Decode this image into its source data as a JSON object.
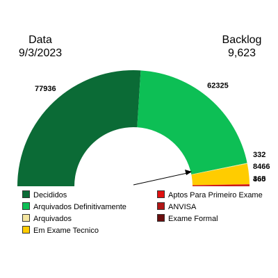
{
  "header": {
    "date_label": "Data",
    "date_value": "9/3/2023",
    "backlog_label": "Backlog",
    "backlog_value": "9,623"
  },
  "chart_data": {
    "type": "pie",
    "variant": "half-donut",
    "categories": [
      "Decididos",
      "Arquivados Definitivamente",
      "Arquivados",
      "Em Exame Tecnico",
      "Aptos Para Primeiro Exame",
      "ANVISA",
      "Exame Formal"
    ],
    "values": [
      77936,
      62325,
      332,
      8466,
      465,
      360,
      0
    ],
    "value_labels": [
      "77936",
      "62325",
      "332",
      "8466",
      "465",
      "360",
      ""
    ],
    "colors": [
      "#0b6b36",
      "#0dbf55",
      "#f5e6a0",
      "#ffcc00",
      "#e01010",
      "#b01515",
      "#6b0f0f"
    ],
    "legend_placement": "bottom"
  }
}
